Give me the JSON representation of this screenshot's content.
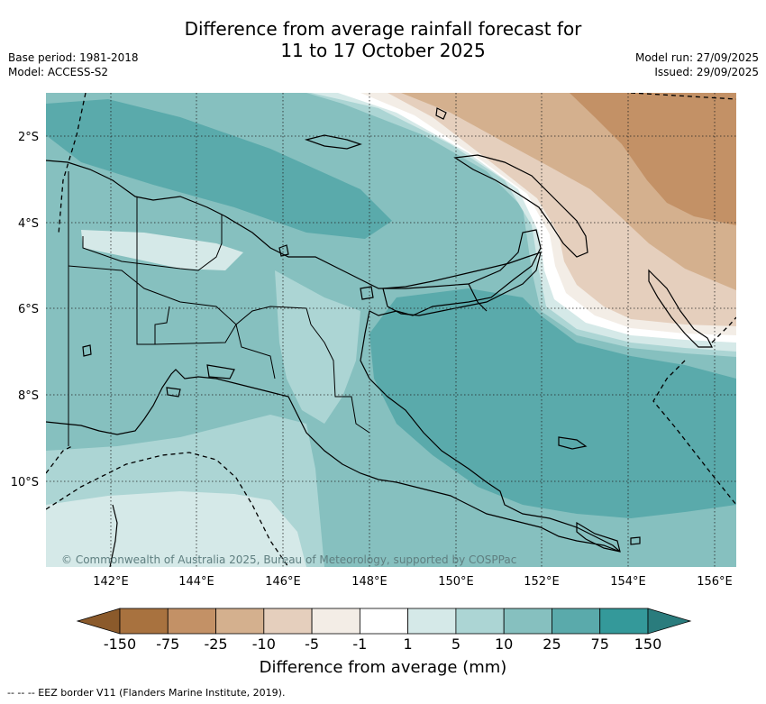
{
  "title": {
    "line1": "Difference from average rainfall forecast for",
    "line2": "11 to 17 October 2025"
  },
  "meta_left": {
    "base_period": "Base period: 1981-2018",
    "model": "Model: ACCESS-S2"
  },
  "meta_right": {
    "model_run": "Model run: 27/09/2025",
    "issued": "Issued: 29/09/2025"
  },
  "map": {
    "lat_labels": [
      "2°S",
      "4°S",
      "6°S",
      "8°S",
      "10°S"
    ],
    "lon_labels": [
      "142°E",
      "144°E",
      "146°E",
      "148°E",
      "150°E",
      "152°E",
      "154°E",
      "156°E"
    ],
    "copyright": "© Commonwealth of Australia 2025, Bureau of Meteorology, supported by COSPPac"
  },
  "legend": {
    "ticks": [
      "-150",
      "-75",
      "-25",
      "-10",
      "-5",
      "-1",
      "1",
      "5",
      "10",
      "25",
      "75",
      "150"
    ],
    "colors": [
      "#8b5a2b",
      "#a8723f",
      "#c39166",
      "#d4b08e",
      "#e5cfbd",
      "#f3ede6",
      "#ffffff",
      "#d5e9e8",
      "#acd5d4",
      "#86c0bf",
      "#5aaaab",
      "#34999a",
      "#2a7c7d"
    ],
    "label": "Difference from average (mm)"
  },
  "footnote": "--  --  -- EEZ border V11 (Flanders Marine Institute, 2019)."
}
